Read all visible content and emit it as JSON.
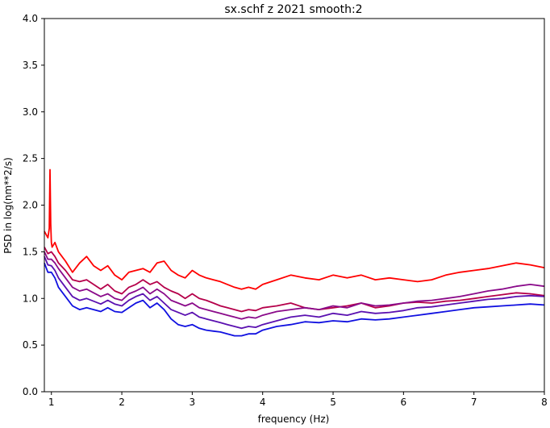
{
  "chart_data": {
    "type": "line",
    "title": "sx.schf z 2021 smooth:2",
    "xlabel": "frequency (Hz)",
    "ylabel": "PSD in log(nm**2/s)",
    "xlim": [
      0.9,
      8
    ],
    "ylim": [
      0,
      4
    ],
    "xticks": [
      "1",
      "2",
      "3",
      "4",
      "5",
      "6",
      "7",
      "8"
    ],
    "yticks": [
      "0.0",
      "0.5",
      "1.0",
      "1.5",
      "2.0",
      "2.5",
      "3.0",
      "3.5",
      "4.0"
    ],
    "grid": false,
    "legend": "none",
    "series": [
      {
        "color": "#ff0000",
        "x": [
          0.9,
          0.95,
          0.97,
          0.98,
          0.99,
          1.0,
          1.01,
          1.05,
          1.1,
          1.2,
          1.3,
          1.4,
          1.5,
          1.6,
          1.7,
          1.8,
          1.9,
          2.0,
          2.1,
          2.2,
          2.3,
          2.4,
          2.5,
          2.6,
          2.7,
          2.8,
          2.9,
          3.0,
          3.1,
          3.2,
          3.3,
          3.4,
          3.5,
          3.6,
          3.7,
          3.8,
          3.9,
          4.0,
          4.2,
          4.4,
          4.6,
          4.8,
          5.0,
          5.2,
          5.4,
          5.6,
          5.8,
          6.0,
          6.2,
          6.4,
          6.6,
          6.8,
          7.0,
          7.2,
          7.4,
          7.6,
          7.8,
          8.0
        ],
        "y": [
          1.72,
          1.65,
          1.75,
          2.38,
          1.8,
          1.6,
          1.55,
          1.6,
          1.5,
          1.4,
          1.28,
          1.38,
          1.45,
          1.35,
          1.3,
          1.35,
          1.25,
          1.2,
          1.28,
          1.3,
          1.32,
          1.28,
          1.38,
          1.4,
          1.3,
          1.25,
          1.22,
          1.3,
          1.25,
          1.22,
          1.2,
          1.18,
          1.15,
          1.12,
          1.1,
          1.12,
          1.1,
          1.15,
          1.2,
          1.25,
          1.22,
          1.2,
          1.25,
          1.22,
          1.25,
          1.2,
          1.22,
          1.2,
          1.18,
          1.2,
          1.25,
          1.28,
          1.3,
          1.32,
          1.35,
          1.38,
          1.36,
          1.33
        ]
      },
      {
        "color": "#b5004a",
        "x": [
          0.9,
          0.95,
          1.0,
          1.05,
          1.1,
          1.2,
          1.3,
          1.4,
          1.5,
          1.6,
          1.7,
          1.8,
          1.9,
          2.0,
          2.1,
          2.2,
          2.3,
          2.4,
          2.5,
          2.6,
          2.7,
          2.8,
          2.9,
          3.0,
          3.1,
          3.2,
          3.3,
          3.4,
          3.5,
          3.6,
          3.7,
          3.8,
          3.9,
          4.0,
          4.2,
          4.4,
          4.6,
          4.8,
          5.0,
          5.2,
          5.4,
          5.6,
          5.8,
          6.0,
          6.2,
          6.4,
          6.6,
          6.8,
          7.0,
          7.2,
          7.4,
          7.6,
          7.8,
          8.0
        ],
        "y": [
          1.55,
          1.48,
          1.5,
          1.45,
          1.38,
          1.3,
          1.2,
          1.18,
          1.2,
          1.15,
          1.1,
          1.15,
          1.08,
          1.05,
          1.12,
          1.15,
          1.2,
          1.15,
          1.18,
          1.12,
          1.08,
          1.05,
          1.0,
          1.05,
          1.0,
          0.98,
          0.95,
          0.92,
          0.9,
          0.88,
          0.86,
          0.88,
          0.87,
          0.9,
          0.92,
          0.95,
          0.9,
          0.88,
          0.9,
          0.92,
          0.95,
          0.9,
          0.92,
          0.95,
          0.96,
          0.95,
          0.97,
          0.98,
          1.0,
          1.02,
          1.04,
          1.06,
          1.05,
          1.03
        ]
      },
      {
        "color": "#8a0a8a",
        "x": [
          0.9,
          0.95,
          1.0,
          1.05,
          1.1,
          1.2,
          1.3,
          1.4,
          1.5,
          1.6,
          1.7,
          1.8,
          1.9,
          2.0,
          2.1,
          2.2,
          2.3,
          2.4,
          2.5,
          2.6,
          2.7,
          2.8,
          2.9,
          3.0,
          3.1,
          3.2,
          3.3,
          3.4,
          3.5,
          3.6,
          3.7,
          3.8,
          3.9,
          4.0,
          4.2,
          4.4,
          4.6,
          4.8,
          5.0,
          5.2,
          5.4,
          5.6,
          5.8,
          6.0,
          6.2,
          6.4,
          6.6,
          6.8,
          7.0,
          7.2,
          7.4,
          7.6,
          7.8,
          8.0
        ],
        "y": [
          1.5,
          1.42,
          1.42,
          1.38,
          1.32,
          1.22,
          1.12,
          1.08,
          1.1,
          1.06,
          1.02,
          1.05,
          1.0,
          0.98,
          1.05,
          1.08,
          1.12,
          1.05,
          1.1,
          1.05,
          0.98,
          0.95,
          0.92,
          0.95,
          0.9,
          0.88,
          0.86,
          0.84,
          0.82,
          0.8,
          0.78,
          0.8,
          0.79,
          0.82,
          0.86,
          0.88,
          0.9,
          0.88,
          0.92,
          0.9,
          0.95,
          0.92,
          0.93,
          0.95,
          0.97,
          0.98,
          1.0,
          1.02,
          1.05,
          1.08,
          1.1,
          1.13,
          1.15,
          1.13
        ]
      },
      {
        "color": "#5a10b0",
        "x": [
          0.9,
          0.95,
          1.0,
          1.05,
          1.1,
          1.2,
          1.3,
          1.4,
          1.5,
          1.6,
          1.7,
          1.8,
          1.9,
          2.0,
          2.1,
          2.2,
          2.3,
          2.4,
          2.5,
          2.6,
          2.7,
          2.8,
          2.9,
          3.0,
          3.1,
          3.2,
          3.3,
          3.4,
          3.5,
          3.6,
          3.7,
          3.8,
          3.9,
          4.0,
          4.2,
          4.4,
          4.6,
          4.8,
          5.0,
          5.2,
          5.4,
          5.6,
          5.8,
          6.0,
          6.2,
          6.4,
          6.6,
          6.8,
          7.0,
          7.2,
          7.4,
          7.6,
          7.8,
          8.0
        ],
        "y": [
          1.45,
          1.36,
          1.35,
          1.3,
          1.22,
          1.12,
          1.02,
          0.98,
          1.0,
          0.97,
          0.94,
          0.98,
          0.94,
          0.92,
          0.98,
          1.02,
          1.05,
          0.98,
          1.02,
          0.95,
          0.88,
          0.85,
          0.82,
          0.85,
          0.8,
          0.78,
          0.76,
          0.74,
          0.72,
          0.7,
          0.68,
          0.7,
          0.69,
          0.72,
          0.76,
          0.8,
          0.82,
          0.8,
          0.84,
          0.82,
          0.86,
          0.84,
          0.85,
          0.87,
          0.9,
          0.91,
          0.93,
          0.95,
          0.97,
          0.99,
          1.0,
          1.02,
          1.03,
          1.02
        ]
      },
      {
        "color": "#1010e0",
        "x": [
          0.9,
          0.95,
          1.0,
          1.05,
          1.1,
          1.2,
          1.3,
          1.4,
          1.5,
          1.6,
          1.7,
          1.8,
          1.9,
          2.0,
          2.1,
          2.2,
          2.3,
          2.4,
          2.5,
          2.6,
          2.7,
          2.8,
          2.9,
          3.0,
          3.1,
          3.2,
          3.3,
          3.4,
          3.5,
          3.6,
          3.7,
          3.8,
          3.9,
          4.0,
          4.2,
          4.4,
          4.6,
          4.8,
          5.0,
          5.2,
          5.4,
          5.6,
          5.8,
          6.0,
          6.2,
          6.4,
          6.6,
          6.8,
          7.0,
          7.2,
          7.4,
          7.6,
          7.8,
          8.0
        ],
        "y": [
          1.38,
          1.28,
          1.28,
          1.22,
          1.12,
          1.02,
          0.92,
          0.88,
          0.9,
          0.88,
          0.86,
          0.9,
          0.86,
          0.85,
          0.9,
          0.95,
          0.98,
          0.9,
          0.95,
          0.88,
          0.78,
          0.72,
          0.7,
          0.72,
          0.68,
          0.66,
          0.65,
          0.64,
          0.62,
          0.6,
          0.6,
          0.62,
          0.62,
          0.66,
          0.7,
          0.72,
          0.75,
          0.74,
          0.76,
          0.75,
          0.78,
          0.77,
          0.78,
          0.8,
          0.82,
          0.84,
          0.86,
          0.88,
          0.9,
          0.91,
          0.92,
          0.93,
          0.94,
          0.93
        ]
      }
    ]
  }
}
